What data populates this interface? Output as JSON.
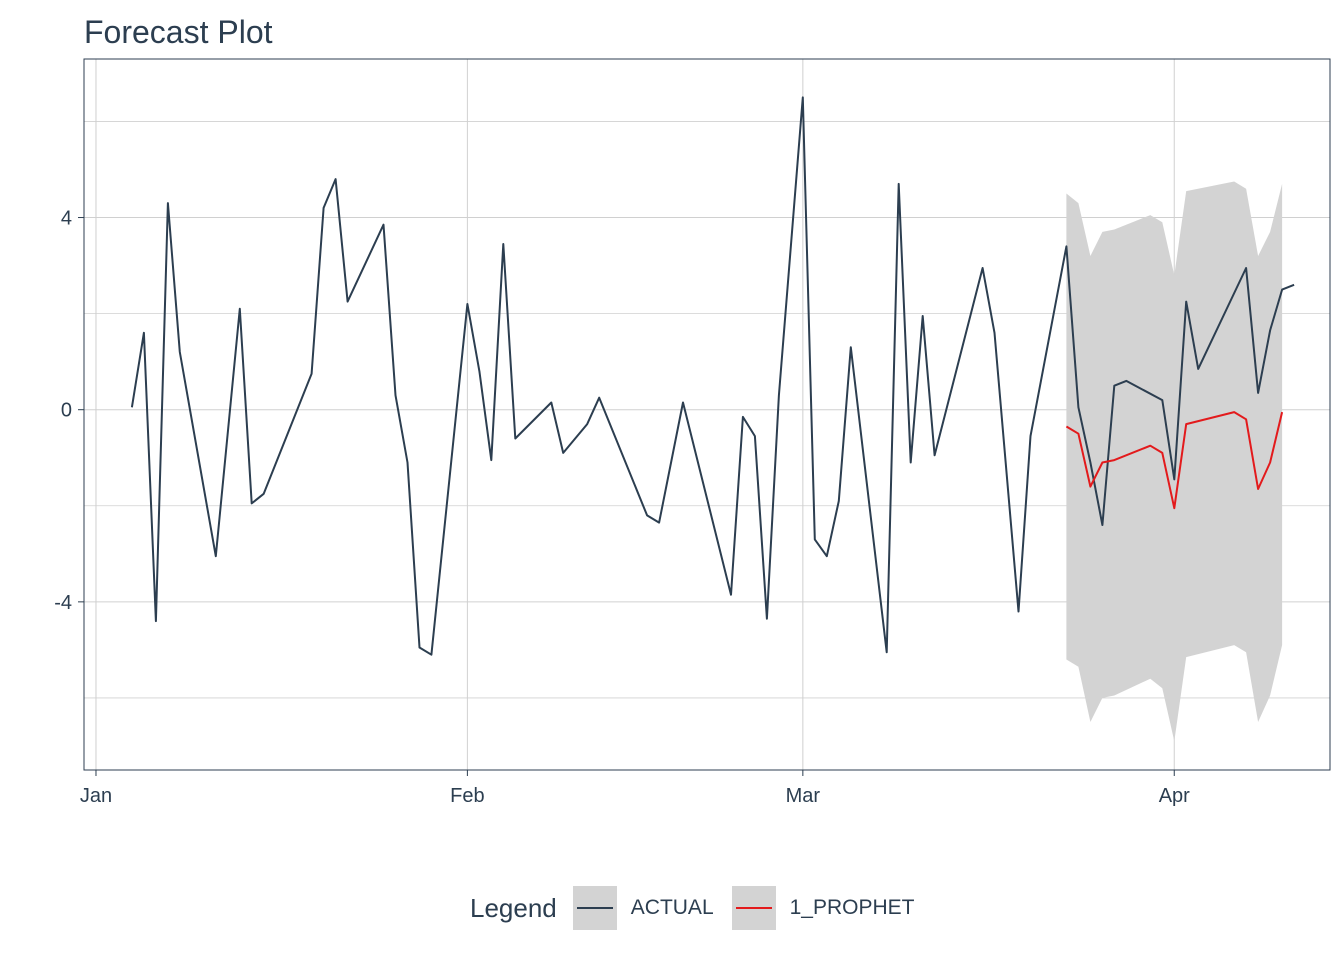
{
  "chart_data": {
    "type": "line",
    "title": "Forecast Plot",
    "xlabel": "",
    "ylabel": "",
    "x_ticks": [
      {
        "label": "Jan",
        "date": "2023-01-01"
      },
      {
        "label": "Feb",
        "date": "2023-02-01"
      },
      {
        "label": "Mar",
        "date": "2023-03-01"
      },
      {
        "label": "Apr",
        "date": "2023-04-01"
      }
    ],
    "y_ticks": [
      -4,
      0,
      4
    ],
    "xlim": [
      "2022-12-31",
      "2023-04-14"
    ],
    "ylim": [
      -7.5,
      7.3
    ],
    "grid": true,
    "legend": {
      "title": "Legend",
      "position": "bottom",
      "entries": [
        {
          "label": "ACTUAL",
          "color": "#2c3e50"
        },
        {
          "label": "1_PROPHET",
          "color": "#e31a1c"
        }
      ]
    },
    "colors": {
      "actual": "#2c3e50",
      "forecast": "#e31a1c",
      "interval": "#d3d3d3",
      "grid": "#d0d0d0"
    },
    "series": [
      {
        "name": "ACTUAL",
        "color": "#2c3e50",
        "points": [
          [
            "2023-01-04",
            0.05
          ],
          [
            "2023-01-05",
            1.6
          ],
          [
            "2023-01-06",
            -4.4
          ],
          [
            "2023-01-07",
            4.3
          ],
          [
            "2023-01-08",
            1.2
          ],
          [
            "2023-01-11",
            -3.05
          ],
          [
            "2023-01-13",
            2.1
          ],
          [
            "2023-01-14",
            -1.95
          ],
          [
            "2023-01-15",
            -1.75
          ],
          [
            "2023-01-19",
            0.75
          ],
          [
            "2023-01-20",
            4.2
          ],
          [
            "2023-01-21",
            4.8
          ],
          [
            "2023-01-22",
            2.25
          ],
          [
            "2023-01-25",
            3.85
          ],
          [
            "2023-01-26",
            0.3
          ],
          [
            "2023-01-27",
            -1.1
          ],
          [
            "2023-01-28",
            -4.95
          ],
          [
            "2023-01-29",
            -5.1
          ],
          [
            "2023-02-01",
            2.2
          ],
          [
            "2023-02-02",
            0.8
          ],
          [
            "2023-02-03",
            -1.05
          ],
          [
            "2023-02-04",
            3.45
          ],
          [
            "2023-02-05",
            -0.6
          ],
          [
            "2023-02-08",
            0.15
          ],
          [
            "2023-02-09",
            -0.9
          ],
          [
            "2023-02-11",
            -0.3
          ],
          [
            "2023-02-12",
            0.25
          ],
          [
            "2023-02-16",
            -2.2
          ],
          [
            "2023-02-17",
            -2.35
          ],
          [
            "2023-02-19",
            0.15
          ],
          [
            "2023-02-23",
            -3.85
          ],
          [
            "2023-02-24",
            -0.15
          ],
          [
            "2023-02-25",
            -0.55
          ],
          [
            "2023-02-26",
            -4.35
          ],
          [
            "2023-02-27",
            0.3
          ],
          [
            "2023-03-01",
            6.5
          ],
          [
            "2023-03-02",
            -2.7
          ],
          [
            "2023-03-03",
            -3.05
          ],
          [
            "2023-03-04",
            -1.9
          ],
          [
            "2023-03-05",
            1.3
          ],
          [
            "2023-03-08",
            -5.05
          ],
          [
            "2023-03-09",
            4.7
          ],
          [
            "2023-03-10",
            -1.1
          ],
          [
            "2023-03-11",
            1.95
          ],
          [
            "2023-03-12",
            -0.95
          ],
          [
            "2023-03-16",
            2.95
          ],
          [
            "2023-03-17",
            1.6
          ],
          [
            "2023-03-19",
            -4.2
          ],
          [
            "2023-03-20",
            -0.55
          ],
          [
            "2023-03-23",
            3.4
          ],
          [
            "2023-03-24",
            0.05
          ],
          [
            "2023-03-25",
            -1.1
          ],
          [
            "2023-03-26",
            -2.4
          ],
          [
            "2023-03-27",
            0.5
          ],
          [
            "2023-03-28",
            0.6
          ],
          [
            "2023-03-31",
            0.2
          ],
          [
            "2023-04-01",
            -1.45
          ],
          [
            "2023-04-02",
            2.25
          ],
          [
            "2023-04-03",
            0.85
          ],
          [
            "2023-04-07",
            2.95
          ],
          [
            "2023-04-08",
            0.35
          ],
          [
            "2023-04-09",
            1.65
          ],
          [
            "2023-04-10",
            2.5
          ],
          [
            "2023-04-11",
            2.6
          ]
        ]
      },
      {
        "name": "1_PROPHET",
        "color": "#e31a1c",
        "points": [
          [
            "2023-03-23",
            -0.35
          ],
          [
            "2023-03-24",
            -0.5
          ],
          [
            "2023-03-25",
            -1.6
          ],
          [
            "2023-03-26",
            -1.1
          ],
          [
            "2023-03-27",
            -1.05
          ],
          [
            "2023-03-30",
            -0.75
          ],
          [
            "2023-03-31",
            -0.9
          ],
          [
            "2023-04-01",
            -2.05
          ],
          [
            "2023-04-02",
            -0.3
          ],
          [
            "2023-04-06",
            -0.05
          ],
          [
            "2023-04-07",
            -0.2
          ],
          [
            "2023-04-08",
            -1.65
          ],
          [
            "2023-04-09",
            -1.1
          ],
          [
            "2023-04-10",
            -0.05
          ]
        ]
      }
    ],
    "prediction_interval": {
      "series": "1_PROPHET",
      "points": [
        [
          "2023-03-23",
          -5.2,
          4.5
        ],
        [
          "2023-03-24",
          -5.35,
          4.3
        ],
        [
          "2023-03-25",
          -6.5,
          3.2
        ],
        [
          "2023-03-26",
          -6.0,
          3.7
        ],
        [
          "2023-03-27",
          -5.95,
          3.75
        ],
        [
          "2023-03-30",
          -5.6,
          4.05
        ],
        [
          "2023-03-31",
          -5.8,
          3.9
        ],
        [
          "2023-04-01",
          -6.9,
          2.8
        ],
        [
          "2023-04-02",
          -5.15,
          4.55
        ],
        [
          "2023-04-06",
          -4.9,
          4.75
        ],
        [
          "2023-04-07",
          -5.05,
          4.6
        ],
        [
          "2023-04-08",
          -6.5,
          3.2
        ],
        [
          "2023-04-09",
          -5.95,
          3.7
        ],
        [
          "2023-04-10",
          -4.9,
          4.7
        ]
      ]
    }
  }
}
